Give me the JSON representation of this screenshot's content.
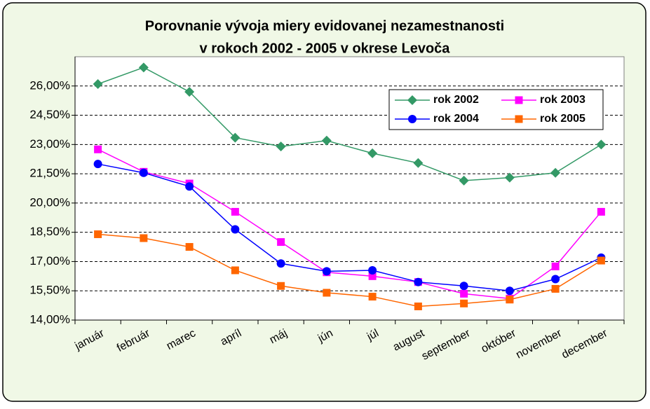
{
  "chart_data": {
    "type": "line",
    "title": [
      "Porovnanie vývoja miery evidovanej nezamestnanosti",
      "v rokoch 2002 - 2005 v okrese Levoča"
    ],
    "categories": [
      "január",
      "február",
      "marec",
      "apríl",
      "máj",
      "jún",
      "júl",
      "august",
      "september",
      "október",
      "november",
      "december"
    ],
    "series": [
      {
        "name": "rok 2002",
        "color": "#339966",
        "marker": "diamond",
        "values": [
          26.1,
          26.95,
          25.7,
          23.35,
          22.9,
          23.2,
          22.55,
          22.05,
          21.15,
          21.3,
          21.55,
          23.0
        ]
      },
      {
        "name": "rok 2003",
        "color": "#ff00ff",
        "marker": "square",
        "values": [
          22.75,
          21.6,
          21.0,
          19.55,
          18.0,
          16.45,
          16.25,
          15.95,
          15.35,
          15.1,
          16.75,
          19.55
        ]
      },
      {
        "name": "rok 2004",
        "color": "#0000ff",
        "marker": "circle",
        "values": [
          22.0,
          21.55,
          20.85,
          18.65,
          16.9,
          16.5,
          16.55,
          15.95,
          15.75,
          15.5,
          16.1,
          17.2
        ]
      },
      {
        "name": "rok 2005",
        "color": "#ff6600",
        "marker": "square",
        "values": [
          18.4,
          18.2,
          17.75,
          16.55,
          15.75,
          15.4,
          15.2,
          14.7,
          14.85,
          15.05,
          15.6,
          17.05
        ]
      }
    ],
    "ylim": [
      14,
      27.5
    ],
    "yticks": [
      {
        "value": 14,
        "label": "14,00%"
      },
      {
        "value": 15.5,
        "label": "15,50%"
      },
      {
        "value": 17,
        "label": "17,00%"
      },
      {
        "value": 18.5,
        "label": "18,50%"
      },
      {
        "value": 20,
        "label": "20,00%"
      },
      {
        "value": 21.5,
        "label": "21,50%"
      },
      {
        "value": 23,
        "label": "23,00%"
      },
      {
        "value": 24.5,
        "label": "24,50%"
      },
      {
        "value": 26,
        "label": "26,00%"
      }
    ],
    "grid": true,
    "legend": "top-right"
  }
}
